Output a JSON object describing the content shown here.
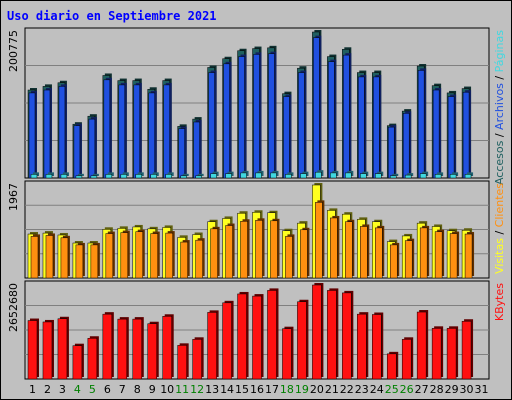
{
  "chart_data": {
    "type": "bar",
    "title": "Uso diario en Septiembre 2021",
    "days": [
      "1",
      "2",
      "3",
      "4",
      "5",
      "6",
      "7",
      "8",
      "9",
      "10",
      "11",
      "12",
      "13",
      "14",
      "15",
      "16",
      "17",
      "18",
      "19",
      "20",
      "21",
      "22",
      "23",
      "24",
      "25",
      "26",
      "27",
      "28",
      "29",
      "30",
      "31"
    ],
    "weekend_days": [
      "4",
      "5",
      "11",
      "12",
      "18",
      "19",
      "25",
      "26"
    ],
    "colors": {
      "accesos": "#206060",
      "archivos": "#2050e0",
      "paginas": "#40d8e0",
      "visitas": "#ffff20",
      "clientes": "#ff9010",
      "kbytes": "#ff1010",
      "weekday_label": "#000000",
      "weekend_label": "#008000",
      "title": "#0000ff"
    },
    "panels": [
      {
        "id": "hits",
        "y_max_label": "200775",
        "series": [
          {
            "name": "Accesos",
            "values": [
              121000,
              126000,
              131000,
              74000,
              85000,
              141000,
              134000,
              134000,
              122000,
              134000,
              71000,
              81000,
              152000,
              164000,
              175000,
              178000,
              179000,
              116000,
              151000,
              200775,
              167000,
              177000,
              145000,
              145000,
              72000,
              92000,
              154000,
              127000,
              117000,
              123000,
              0
            ]
          },
          {
            "name": "Archivos",
            "values": [
              117000,
              121000,
              126000,
              72000,
              81000,
              135000,
              128000,
              128000,
              117000,
              128000,
              68000,
              77000,
              145000,
              157000,
              167000,
              170000,
              171000,
              112000,
              145000,
              193000,
              160000,
              169000,
              139000,
              139000,
              70000,
              89000,
              148000,
              121000,
              112000,
              118000,
              0
            ]
          },
          {
            "name": "Páginas",
            "values": [
              5000,
              5000,
              5000,
              3000,
              3000,
              5000,
              5000,
              5000,
              5000,
              5000,
              3000,
              3000,
              6000,
              6000,
              7000,
              7000,
              7000,
              5000,
              6000,
              8000,
              7000,
              7000,
              6000,
              6000,
              3000,
              4000,
              6000,
              5000,
              5000,
              5000,
              0
            ]
          }
        ]
      },
      {
        "id": "visits",
        "y_max_label": "1967",
        "series": [
          {
            "name": "Visitas",
            "values": [
              930,
              950,
              910,
              740,
              740,
              1030,
              1050,
              1080,
              1040,
              1070,
              860,
              920,
              1190,
              1260,
              1370,
              1390,
              1380,
              1000,
              1160,
              1967,
              1430,
              1350,
              1240,
              1190,
              770,
              890,
              1160,
              1090,
              1000,
              1010,
              0
            ]
          },
          {
            "name": "Clientes",
            "values": [
              880,
              900,
              850,
              700,
              700,
              940,
              960,
              980,
              940,
              950,
              760,
              800,
              1040,
              1110,
              1200,
              1220,
              1210,
              880,
              1020,
              1600,
              1270,
              1190,
              1090,
              1060,
              700,
              790,
              1060,
              980,
              940,
              930,
              0
            ]
          }
        ]
      },
      {
        "id": "kbytes",
        "y_max_label": "2652680",
        "series": [
          {
            "name": "KBytes",
            "values": [
              1650000,
              1610000,
              1700000,
              940000,
              1150000,
              1830000,
              1690000,
              1690000,
              1560000,
              1770000,
              950000,
              1120000,
              1880000,
              2150000,
              2400000,
              2340000,
              2500000,
              1420000,
              2180000,
              2652680,
              2500000,
              2430000,
              1830000,
              1820000,
              710000,
              1120000,
              1890000,
              1430000,
              1430000,
              1630000,
              0
            ]
          }
        ]
      }
    ],
    "right_labels": {
      "hits": [
        {
          "text": "Accesos",
          "color_key": "accesos"
        },
        {
          "text": "Archivos",
          "color_key": "archivos"
        },
        {
          "text": "Páginas",
          "color_key": "paginas"
        }
      ],
      "visits": [
        {
          "text": "Visitas",
          "color_key": "visitas"
        },
        {
          "text": "Clientes",
          "color_key": "clientes"
        }
      ],
      "kbytes": [
        {
          "text": "KBytes",
          "color_key": "kbytes"
        }
      ],
      "separator": " / "
    }
  }
}
